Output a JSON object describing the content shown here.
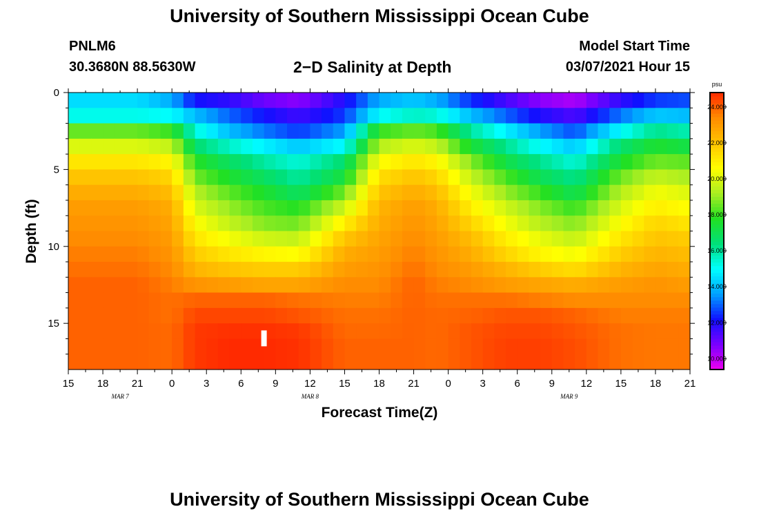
{
  "header": {
    "title": "University of Southern Mississippi Ocean Cube",
    "station": "PNLM6",
    "coords": "30.3680N 88.5630W",
    "subtitle": "2−D Salinity at Depth",
    "model_start_label": "Model Start Time",
    "model_start_value": "03/07/2021 Hour 15"
  },
  "footer": {
    "title": "University of Southern Mississippi Ocean Cube"
  },
  "chart_data": {
    "type": "heatmap",
    "title": "2−D Salinity at Depth",
    "xlabel": "Forecast Time(Z)",
    "ylabel": "Depth (ft)",
    "x_tick_labels": [
      "15",
      "18",
      "21",
      "0",
      "3",
      "6",
      "9",
      "12",
      "15",
      "18",
      "21",
      "0",
      "3",
      "6",
      "9",
      "12",
      "15",
      "18",
      "21"
    ],
    "x_date_labels": [
      {
        "label": "MAR 7",
        "tick_index": 1.5
      },
      {
        "label": "MAR 8",
        "tick_index": 7
      },
      {
        "label": "MAR 9",
        "tick_index": 14.5
      }
    ],
    "x_range_hours": [
      0,
      54
    ],
    "y_tick_labels": [
      "0",
      "5",
      "10",
      "15"
    ],
    "ylim": [
      0,
      18
    ],
    "colorbar": {
      "unit": "psu",
      "tick_labels": [
        "10.000",
        "12.000",
        "14.000",
        "16.000",
        "18.000",
        "20.000",
        "22.000",
        "24.000"
      ],
      "range": [
        9.4,
        24.8
      ]
    },
    "depth_levels_ft": [
      0.5,
      1.5,
      2.5,
      3.5,
      4.5,
      5.5,
      6.5,
      7.5,
      8.5,
      9.5,
      10.5,
      11.5,
      12.5,
      13.5,
      14.5,
      15.5,
      16.5,
      17.5
    ],
    "control_hours": [
      0,
      6,
      9,
      11,
      14,
      17,
      20,
      24,
      27,
      30,
      32,
      35,
      38,
      41,
      44,
      48,
      51,
      54
    ],
    "profiles": [
      [
        14.5,
        14.5,
        13.8,
        12.2,
        11.8,
        11.0,
        10.6,
        12.0,
        13.8,
        14.2,
        13.8,
        12.5,
        11.5,
        10.6,
        10.2,
        11.8,
        12.6,
        12.8
      ],
      [
        15.2,
        15.2,
        15.0,
        14.0,
        13.0,
        12.2,
        11.6,
        12.6,
        15.0,
        15.6,
        15.4,
        14.0,
        13.0,
        12.0,
        11.4,
        13.2,
        14.2,
        14.0
      ],
      [
        18.5,
        18.5,
        18.0,
        15.4,
        14.0,
        13.2,
        12.6,
        13.6,
        18.0,
        18.5,
        18.2,
        16.0,
        14.8,
        13.6,
        12.8,
        15.0,
        16.2,
        15.8
      ],
      [
        20.0,
        20.0,
        19.6,
        16.6,
        15.6,
        14.8,
        14.2,
        15.0,
        19.4,
        20.0,
        19.6,
        17.5,
        16.2,
        15.0,
        14.2,
        16.6,
        17.6,
        17.2
      ],
      [
        21.2,
        21.2,
        20.8,
        17.8,
        16.8,
        16.0,
        15.4,
        16.6,
        20.6,
        21.2,
        20.8,
        18.8,
        17.2,
        16.2,
        15.4,
        17.6,
        18.6,
        18.4
      ],
      [
        22.0,
        22.0,
        21.6,
        18.6,
        17.6,
        16.8,
        16.0,
        17.4,
        21.4,
        22.0,
        21.6,
        19.6,
        18.2,
        17.0,
        16.2,
        18.6,
        19.6,
        19.2
      ],
      [
        22.6,
        22.6,
        22.2,
        19.4,
        18.4,
        17.6,
        16.8,
        18.6,
        22.0,
        22.6,
        22.2,
        20.4,
        19.0,
        18.0,
        17.0,
        19.4,
        20.4,
        20.0
      ],
      [
        23.0,
        23.0,
        22.6,
        20.0,
        19.0,
        18.2,
        17.8,
        19.8,
        22.4,
        23.0,
        22.6,
        21.0,
        19.8,
        18.8,
        18.0,
        20.0,
        21.0,
        20.6
      ],
      [
        23.2,
        23.2,
        22.8,
        20.6,
        19.6,
        18.8,
        18.6,
        21.0,
        22.6,
        23.2,
        22.8,
        21.6,
        20.4,
        19.4,
        18.8,
        20.6,
        21.6,
        21.2
      ],
      [
        23.4,
        23.4,
        23.0,
        21.2,
        20.4,
        19.8,
        19.6,
        22.0,
        22.8,
        23.4,
        23.0,
        22.2,
        21.0,
        20.2,
        19.6,
        21.2,
        22.0,
        21.8
      ],
      [
        23.6,
        23.6,
        23.2,
        21.8,
        21.2,
        20.8,
        20.6,
        22.6,
        23.0,
        23.6,
        23.2,
        22.6,
        21.6,
        20.8,
        20.4,
        21.8,
        22.4,
        22.2
      ],
      [
        23.8,
        23.8,
        23.4,
        22.4,
        22.0,
        21.8,
        21.8,
        23.0,
        23.2,
        23.8,
        23.4,
        23.0,
        22.4,
        21.8,
        21.4,
        22.4,
        22.8,
        22.6
      ],
      [
        24.0,
        24.0,
        23.6,
        23.2,
        23.0,
        22.8,
        22.8,
        23.4,
        23.4,
        24.0,
        23.6,
        23.4,
        23.0,
        22.8,
        22.6,
        23.0,
        23.2,
        23.0
      ],
      [
        24.0,
        24.0,
        23.8,
        24.0,
        24.0,
        24.0,
        23.8,
        23.6,
        23.6,
        24.0,
        23.8,
        23.8,
        23.8,
        23.6,
        23.4,
        23.4,
        23.4,
        23.4
      ],
      [
        24.0,
        24.0,
        23.8,
        24.4,
        24.4,
        24.4,
        24.2,
        23.8,
        23.8,
        24.0,
        23.9,
        24.0,
        24.2,
        24.2,
        24.0,
        23.6,
        23.6,
        23.6
      ],
      [
        24.0,
        24.0,
        23.9,
        24.6,
        24.7,
        24.7,
        24.6,
        23.9,
        23.9,
        24.0,
        23.9,
        24.2,
        24.4,
        24.4,
        24.2,
        23.8,
        23.7,
        23.7
      ],
      [
        24.0,
        24.0,
        23.9,
        24.6,
        24.8,
        24.8,
        24.7,
        24.0,
        24.0,
        24.0,
        23.9,
        24.2,
        24.5,
        24.5,
        24.3,
        23.8,
        23.7,
        23.7
      ],
      [
        24.0,
        24.0,
        23.9,
        24.6,
        24.8,
        24.8,
        24.7,
        24.0,
        24.0,
        24.0,
        23.9,
        24.2,
        24.5,
        24.5,
        24.3,
        23.8,
        23.7,
        23.7
      ]
    ],
    "marker": {
      "hour": 17,
      "depth_ft": 16.0,
      "color": "#ffffff"
    },
    "colormap": [
      "#ee00ee",
      "#7a00ff",
      "#1010ff",
      "#00a0ff",
      "#00ffff",
      "#00e07a",
      "#22e022",
      "#aaee22",
      "#ffff00",
      "#ffc400",
      "#ff8c00",
      "#ff2a00"
    ]
  }
}
